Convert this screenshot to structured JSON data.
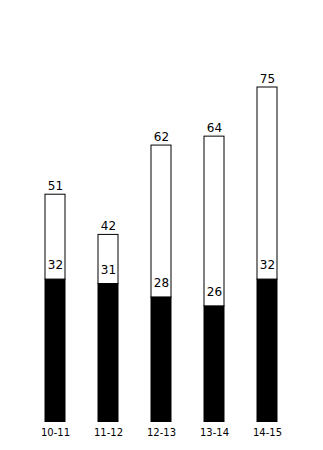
{
  "chart_data": {
    "type": "bar",
    "stacked": true,
    "categories": [
      "10-11",
      "11-12",
      "12-13",
      "13-14",
      "14-15"
    ],
    "series": [
      {
        "color": "#000000",
        "values": [
          32,
          31,
          28,
          26,
          32
        ],
        "data_labels": true
      },
      {
        "color": "#ffffff",
        "values": [
          19,
          11,
          34,
          38,
          43
        ]
      }
    ],
    "totals": [
      51,
      42,
      62,
      64,
      75
    ],
    "ylim": [
      0,
      90
    ],
    "tick_labels": "x",
    "grid": false
  }
}
